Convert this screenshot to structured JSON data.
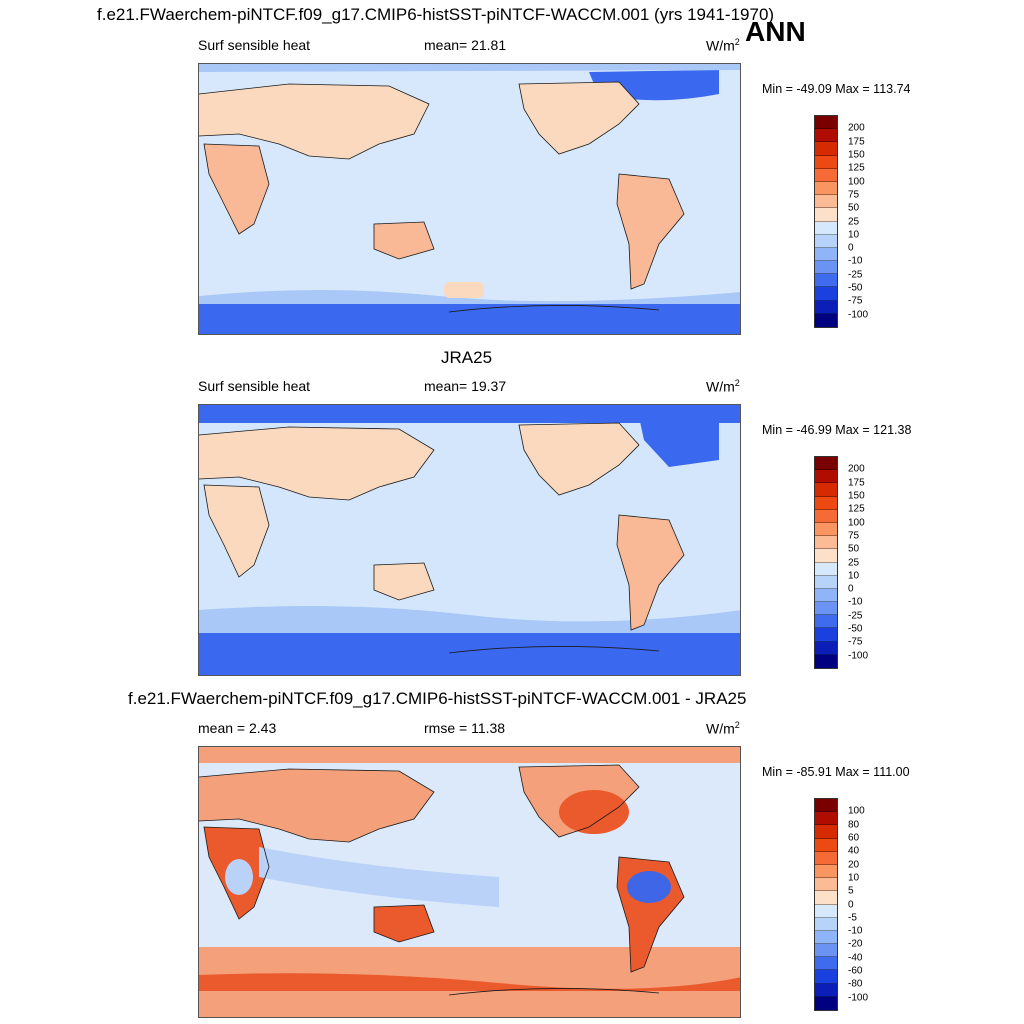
{
  "season": "ANN",
  "panels": [
    {
      "id": "model",
      "title": "f.e21.FWaerchem-piNTCF.f09_g17.CMIP6-histSST-piNTCF-WACCM.001 (yrs 1941-1970)",
      "left_label": "Surf sensible heat",
      "center_label": "mean=  21.81",
      "units_base": "W/m",
      "units_exp": "2",
      "minmax": "Min = -49.09 Max = 113.74",
      "colorbar": {
        "labels": [
          "200",
          "175",
          "150",
          "125",
          "100",
          "75",
          "50",
          "25",
          "10",
          "0",
          "-10",
          "-25",
          "-50",
          "-75",
          "-100"
        ],
        "colors": [
          "#7a0000",
          "#b00d00",
          "#d62a00",
          "#ec4a12",
          "#f56a35",
          "#fa9460",
          "#fbbc95",
          "#fde0c9",
          "#d6e8fb",
          "#b8d3fa",
          "#8fb4f7",
          "#6b93f3",
          "#3f6cef",
          "#1a40e0",
          "#0b1fb8",
          "#000080"
        ]
      }
    },
    {
      "id": "obs",
      "title": "JRA25",
      "left_label": "Surf sensible heat",
      "center_label": "mean=  19.37",
      "units_base": "W/m",
      "units_exp": "2",
      "minmax": "Min = -46.99 Max = 121.38",
      "colorbar": {
        "labels": [
          "200",
          "175",
          "150",
          "125",
          "100",
          "75",
          "50",
          "25",
          "10",
          "0",
          "-10",
          "-25",
          "-50",
          "-75",
          "-100"
        ],
        "colors": [
          "#7a0000",
          "#b00d00",
          "#d62a00",
          "#ec4a12",
          "#f56a35",
          "#fa9460",
          "#fbbc95",
          "#fde0c9",
          "#d6e8fb",
          "#b8d3fa",
          "#8fb4f7",
          "#6b93f3",
          "#3f6cef",
          "#1a40e0",
          "#0b1fb8",
          "#000080"
        ]
      }
    },
    {
      "id": "diff",
      "title": "f.e21.FWaerchem-piNTCF.f09_g17.CMIP6-histSST-piNTCF-WACCM.001 - JRA25",
      "left_label": "mean =   2.43",
      "center_label": "rmse =  11.38",
      "units_base": "W/m",
      "units_exp": "2",
      "minmax": "Min = -85.91 Max = 111.00",
      "colorbar": {
        "labels": [
          "100",
          "80",
          "60",
          "40",
          "20",
          "10",
          "5",
          "0",
          "-5",
          "-10",
          "-20",
          "-40",
          "-60",
          "-80",
          "-100"
        ],
        "colors": [
          "#7a0000",
          "#b00d00",
          "#d62a00",
          "#ec4a12",
          "#f56a35",
          "#fa9460",
          "#fbbc95",
          "#fde0c9",
          "#d6e8fb",
          "#b8d3fa",
          "#8fb4f7",
          "#6b93f3",
          "#3f6cef",
          "#1a40e0",
          "#0b1fb8",
          "#000080"
        ]
      }
    }
  ],
  "colors": {
    "ocean_model": "#d7e8fc",
    "ocean_obs": "#d4e6fb",
    "ocean_diff": "#dbe9fb",
    "land_warm": "#fbd9bf",
    "land_warmer": "#f9b896",
    "cold_band": "#3a68ee",
    "cool_band": "#a9c7f7",
    "diff_warm": "#f4a07a",
    "diff_hot": "#ea5a2c",
    "diff_cool": "#bad2f8",
    "diff_cold": "#3e66e6",
    "coast": "#1a1a1a"
  }
}
